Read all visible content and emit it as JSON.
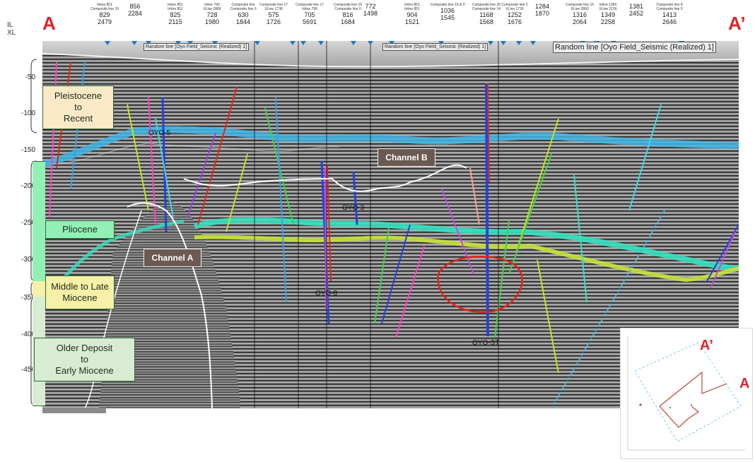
{
  "section": {
    "start_label": "A",
    "end_label": "A’",
    "il_label": "IL",
    "xl_label": "XL",
    "header_columns": [
      {
        "lines": [
          "Inline 851",
          "Composite line 19"
        ],
        "il": "829",
        "xl": "2479"
      },
      {
        "lines": [
          "",
          ""
        ],
        "il": "856",
        "xl": "2284"
      },
      {
        "lines": [
          "Inline 851",
          "Inline 851"
        ],
        "il": "825",
        "xl": "2115"
      },
      {
        "lines": [
          "Inline 790",
          "XLine 2886"
        ],
        "il": "728",
        "xl": "1980"
      },
      {
        "lines": [
          "Composite line",
          "Composite line 9"
        ],
        "il": "630",
        "xl": "1844"
      },
      {
        "lines": [
          "Composite line 17",
          "XLine 1738"
        ],
        "il": "575",
        "xl": "1726"
      },
      {
        "lines": [
          "Composite line 17",
          "Inline 799"
        ],
        "il": "705",
        "xl": "5691"
      },
      {
        "lines": [
          "Composite line 15",
          "Composite line 6"
        ],
        "il": "816",
        "xl": "1684"
      },
      {
        "lines": [
          "",
          ""
        ],
        "il": "772",
        "xl": "1498"
      },
      {
        "lines": [
          "Inline 851",
          "Inline 851"
        ],
        "il": "904",
        "xl": "1521"
      },
      {
        "lines": [
          "",
          "Composite line 10 & 3"
        ],
        "il": "1036",
        "xl": "1545"
      },
      {
        "lines": [
          "Composite line 20",
          "Composite line 14"
        ],
        "il": "1168",
        "xl": "1568"
      },
      {
        "lines": [
          "Composite line 2",
          "XLine 1730"
        ],
        "il": "1252",
        "xl": "1676"
      },
      {
        "lines": [
          "",
          ""
        ],
        "il": "1284",
        "xl": "1870"
      },
      {
        "lines": [
          "Composite line 16",
          "XLine 2800"
        ],
        "il": "1316",
        "xl": "2064"
      },
      {
        "lines": [
          "Inline 1350",
          "XLine 2156"
        ],
        "il": "1349",
        "xl": "2258"
      },
      {
        "lines": [
          "",
          ""
        ],
        "il": "1381",
        "xl": "2452"
      },
      {
        "lines": [
          "Composite line 8",
          "Composite line 5"
        ],
        "il": "1413",
        "xl": "2646"
      }
    ],
    "banners": [
      "Random line [Oyo Field_Seismic (Realized) 1]",
      "Random line [Oyo Field_Seismic (Realized) 1]",
      "Random line [Oyo Field_Seismic (Realized) 1]"
    ],
    "depth_ticks": [
      "-50",
      "-100",
      "-150",
      "-200",
      "-250",
      "-300",
      "-350",
      "-400",
      "-450"
    ]
  },
  "stages": [
    {
      "label": "Pleistocene to Recent",
      "line1": "Pleistocene",
      "line2": "to",
      "line3": "Recent",
      "color": "#fbe9c8"
    },
    {
      "label": "Pliocene",
      "color": "#93f0b4"
    },
    {
      "label": "Middle to Late Miocene",
      "line1": "Middle to Late",
      "line2": "Miocene",
      "color": "#f8f0a6"
    },
    {
      "label": "Older Deposit to Early Miocene",
      "line1": "Older Deposit",
      "line2": "to",
      "line3": "Early Miocene",
      "color": "#d8ecd2"
    }
  ],
  "callouts": {
    "channel_a": "Channel A",
    "channel_b": "Channel B"
  },
  "wells": {
    "w1": "OYO-5",
    "w2": "OYO-3",
    "w3": "OYO-8",
    "w4": "OYO-ST"
  },
  "inset": {
    "end_label": "A’",
    "start_label": "A"
  },
  "colors": {
    "accent_red": "#d8262b",
    "horizon_blue": "#3fb6e6",
    "horizon_cyan": "#35e0c0",
    "horizon_yellow": "#c9e23a",
    "channel_white": "#ffffff",
    "anomaly_red": "#e0241d"
  }
}
